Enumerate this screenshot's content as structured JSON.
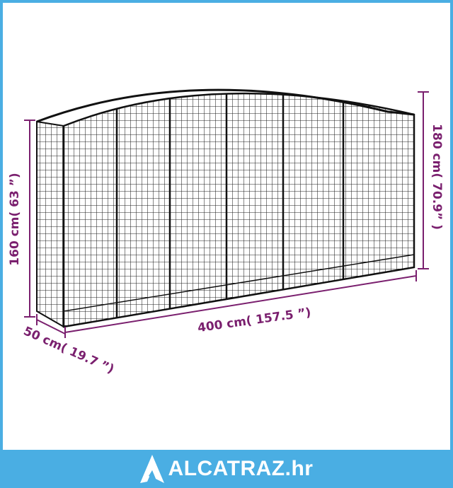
{
  "dimensions": {
    "height_left": "160 cm( 63 ”)",
    "height_right": "180 cm( 70.9” )",
    "length": "400 cm( 157.5 ”)",
    "depth": "50 cm( 19.7 ”)"
  },
  "footer": {
    "brand": "ALCATRAZ.hr",
    "logo_icon": "alcatraz-a-logo-icon"
  },
  "colors": {
    "dimension": "#7a1f6e",
    "frame": "#4aaee3",
    "wire": "#1a1a1a"
  }
}
